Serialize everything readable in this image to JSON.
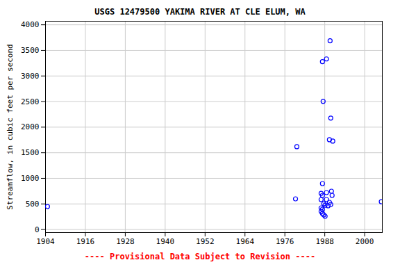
{
  "chart_data": {
    "type": "scatter",
    "title": "USGS 12479500 YAKIMA RIVER AT CLE ELUM, WA",
    "caption": "---- Provisional Data Subject to Revision ----",
    "y_label": "Streamflow, in cubic feet per second",
    "x": [
      1904.6,
      1979.2,
      1979.6,
      1987.3,
      1987.5,
      1988.5,
      1989.6,
      1989.8,
      1989.4,
      1990.4,
      1987.3,
      1986.9,
      1987.3,
      1988.5,
      1990.0,
      1990.2,
      1986.9,
      1988.5,
      1989.4,
      1987.7,
      1989.8,
      1988.1,
      1989.0,
      1986.9,
      1986.9,
      1987.3,
      1987.7,
      1988.1,
      1987.3,
      2005.0
    ],
    "values": [
      449,
      599,
      1619,
      3279,
      2503,
      3333,
      3687,
      2177,
      1755,
      1728,
      898,
      707,
      667,
      721,
      748,
      667,
      585,
      585,
      531,
      503,
      490,
      476,
      463,
      422,
      354,
      313,
      286,
      259,
      395,
      544
    ],
    "color": "#0000ff",
    "marker": "circle",
    "xlim": [
      1904,
      2005.3
    ],
    "ylim": [
      -60,
      4070
    ],
    "xticks": [
      1904,
      1916,
      1928,
      1940,
      1952,
      1964,
      1976,
      1988,
      2000
    ],
    "yticks": [
      0,
      500,
      1000,
      1500,
      2000,
      2500,
      3000,
      3500,
      4000
    ],
    "grid": true
  }
}
